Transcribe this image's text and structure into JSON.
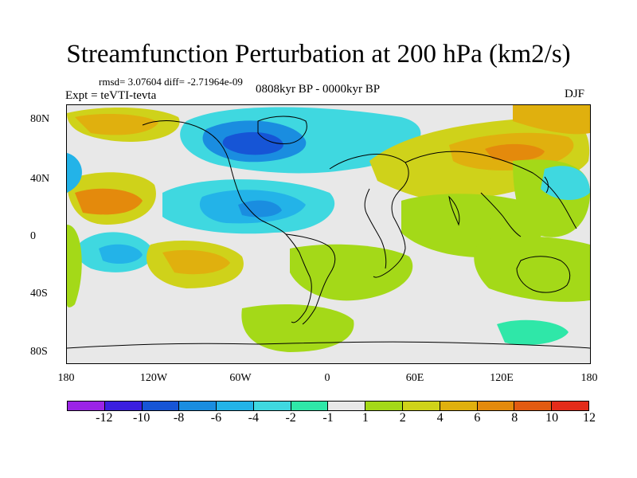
{
  "title": "Streamfunction Perturbation at 200 hPa (km2/s)",
  "stats_text": "rmsd= 3.07604 diff= -2.71964e-09",
  "expt_text": "Expt = teVTI-tevta",
  "period_text": "0808kyr BP - 0000kyr BP",
  "season_text": "DJF",
  "y_ticks": [
    "80N",
    "40N",
    "0",
    "40S",
    "80S"
  ],
  "x_ticks": [
    "180",
    "120W",
    "60W",
    "0",
    "60E",
    "120E",
    "180"
  ],
  "colorbar": {
    "colors": [
      "#9b24e6",
      "#3b1fe0",
      "#1655d6",
      "#1a8de0",
      "#23b3e8",
      "#3fd8e0",
      "#2fe7a8",
      "#e8e8e8",
      "#a4d918",
      "#cfd21a",
      "#e0b00e",
      "#e48a0c",
      "#e25b12",
      "#e32c1a"
    ],
    "labels": [
      "-12",
      "-10",
      "-8",
      "-6",
      "-4",
      "-2",
      "-1",
      "1",
      "2",
      "4",
      "6",
      "8",
      "10",
      "12"
    ]
  }
}
